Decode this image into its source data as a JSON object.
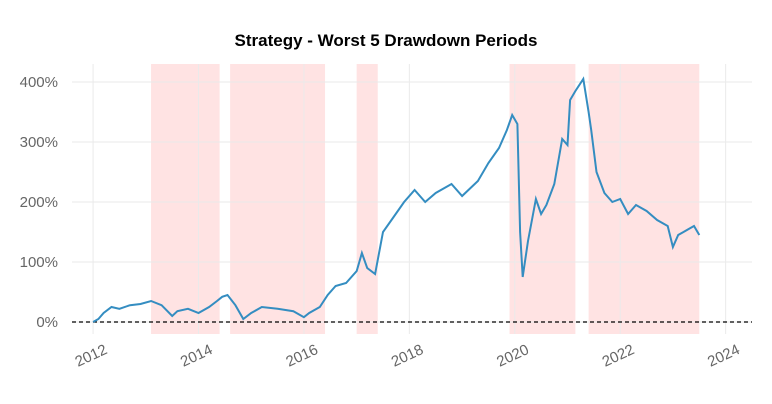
{
  "chart_data": {
    "type": "line",
    "title": "Strategy - Worst 5 Drawdown Periods",
    "xlabel": "",
    "ylabel": "",
    "xlim": [
      2011.6,
      2024.5
    ],
    "ylim": [
      -0.2,
      4.3
    ],
    "grid": true,
    "x_ticks": [
      2012,
      2014,
      2016,
      2018,
      2020,
      2022,
      2024
    ],
    "x_tick_labels": [
      "2012",
      "2014",
      "2016",
      "2018",
      "2020",
      "2022",
      "2024"
    ],
    "y_ticks": [
      0,
      1,
      2,
      3,
      4
    ],
    "y_tick_labels": [
      "0%",
      "100%",
      "200%",
      "300%",
      "400%"
    ],
    "baseline": 0,
    "drawdown_periods": [
      {
        "start": 2013.1,
        "end": 2014.4
      },
      {
        "start": 2014.6,
        "end": 2016.4
      },
      {
        "start": 2017.0,
        "end": 2017.4
      },
      {
        "start": 2019.9,
        "end": 2021.15
      },
      {
        "start": 2021.4,
        "end": 2023.5
      }
    ],
    "series": [
      {
        "x": [
          2012.0,
          2012.1,
          2012.2,
          2012.35,
          2012.5,
          2012.7,
          2012.9,
          2013.1,
          2013.3,
          2013.5,
          2013.6,
          2013.8,
          2014.0,
          2014.2,
          2014.35,
          2014.45,
          2014.55,
          2014.7,
          2014.85,
          2015.0,
          2015.2,
          2015.5,
          2015.8,
          2016.0,
          2016.1,
          2016.3,
          2016.45,
          2016.6,
          2016.8,
          2017.0,
          2017.1,
          2017.2,
          2017.35,
          2017.5,
          2017.7,
          2017.9,
          2018.1,
          2018.3,
          2018.5,
          2018.8,
          2019.0,
          2019.3,
          2019.5,
          2019.7,
          2019.85,
          2019.95,
          2020.05,
          2020.1,
          2020.15,
          2020.25,
          2020.4,
          2020.5,
          2020.6,
          2020.75,
          2020.9,
          2021.0,
          2021.05,
          2021.15,
          2021.3,
          2021.4,
          2021.45,
          2021.55,
          2021.7,
          2021.85,
          2022.0,
          2022.15,
          2022.3,
          2022.5,
          2022.7,
          2022.9,
          2023.0,
          2023.1,
          2023.2,
          2023.3,
          2023.4,
          2023.5
        ],
        "values": [
          0.0,
          0.05,
          0.15,
          0.25,
          0.22,
          0.28,
          0.3,
          0.35,
          0.28,
          0.1,
          0.18,
          0.22,
          0.15,
          0.25,
          0.35,
          0.42,
          0.45,
          0.28,
          0.05,
          0.15,
          0.25,
          0.22,
          0.18,
          0.08,
          0.15,
          0.25,
          0.45,
          0.6,
          0.65,
          0.85,
          1.15,
          0.9,
          0.8,
          1.5,
          1.75,
          2.0,
          2.2,
          2.0,
          2.15,
          2.3,
          2.1,
          2.35,
          2.65,
          2.9,
          3.2,
          3.45,
          3.3,
          1.5,
          0.75,
          1.35,
          2.05,
          1.8,
          1.95,
          2.3,
          3.05,
          2.95,
          3.7,
          3.85,
          4.05,
          3.5,
          3.2,
          2.5,
          2.15,
          2.0,
          2.05,
          1.8,
          1.95,
          1.85,
          1.7,
          1.6,
          1.25,
          1.45,
          1.5,
          1.55,
          1.6,
          1.45
        ],
        "color": "#348dc1"
      }
    ],
    "colors": {
      "line": "#348dc1",
      "shade": "#ffe3e3",
      "grid": "#eaeaea",
      "baseline": "#000000"
    }
  }
}
